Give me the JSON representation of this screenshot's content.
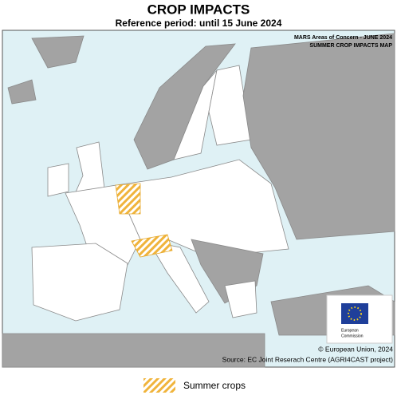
{
  "header": {
    "title": "CROP IMPACTS",
    "subtitle": "Reference period: until 15 June 2024"
  },
  "map": {
    "caption_lines": [
      "MARS Areas of Concern - JUNE 2024",
      "SUMMER CROP IMPACTS MAP"
    ],
    "credits": [
      "© European Union, 2024",
      "Source: EC Joint Reserach Centre (AGRI4CAST project)"
    ],
    "logo_text": [
      "European",
      "Commission"
    ]
  },
  "legend": {
    "items": [
      {
        "label": "Summer crops"
      }
    ]
  }
}
